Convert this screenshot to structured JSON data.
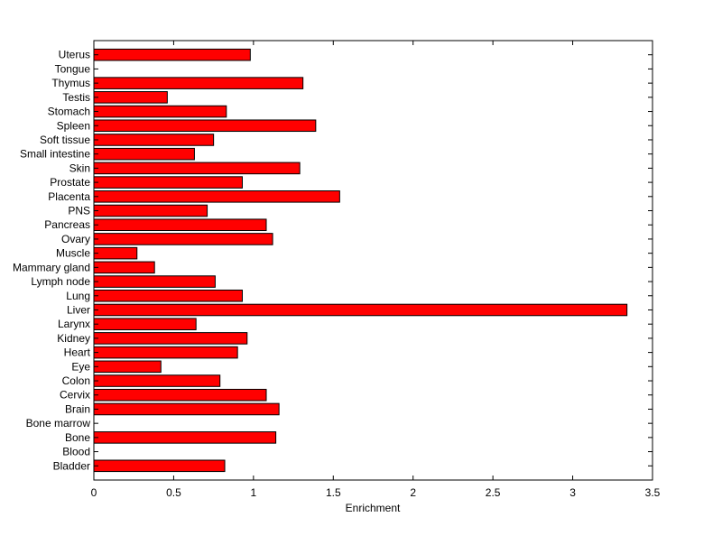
{
  "chart_data": {
    "type": "bar",
    "orientation": "horizontal",
    "title": "",
    "xlabel": "Enrichment",
    "ylabel": "",
    "xlim": [
      0,
      3.5
    ],
    "xticks": [
      "0",
      "0.5",
      "1",
      "1.5",
      "2",
      "2.5",
      "3",
      "3.5"
    ],
    "grid": false,
    "bar_color": "#ff0000",
    "categories": [
      "Bladder",
      "Blood",
      "Bone",
      "Bone marrow",
      "Brain",
      "Cervix",
      "Colon",
      "Eye",
      "Heart",
      "Kidney",
      "Larynx",
      "Liver",
      "Lung",
      "Lymph node",
      "Mammary gland",
      "Muscle",
      "Ovary",
      "Pancreas",
      "PNS",
      "Placenta",
      "Prostate",
      "Skin",
      "Small intestine",
      "Soft tissue",
      "Spleen",
      "Stomach",
      "Testis",
      "Thymus",
      "Tongue",
      "Uterus"
    ],
    "values": [
      0.82,
      0,
      1.14,
      0,
      1.16,
      1.08,
      0.79,
      0.42,
      0.9,
      0.96,
      0.64,
      3.34,
      0.93,
      0.76,
      0.38,
      0.27,
      1.12,
      1.08,
      0.71,
      1.54,
      0.93,
      1.29,
      0.63,
      0.75,
      1.39,
      0.83,
      0.46,
      1.31,
      0,
      0.98
    ]
  }
}
